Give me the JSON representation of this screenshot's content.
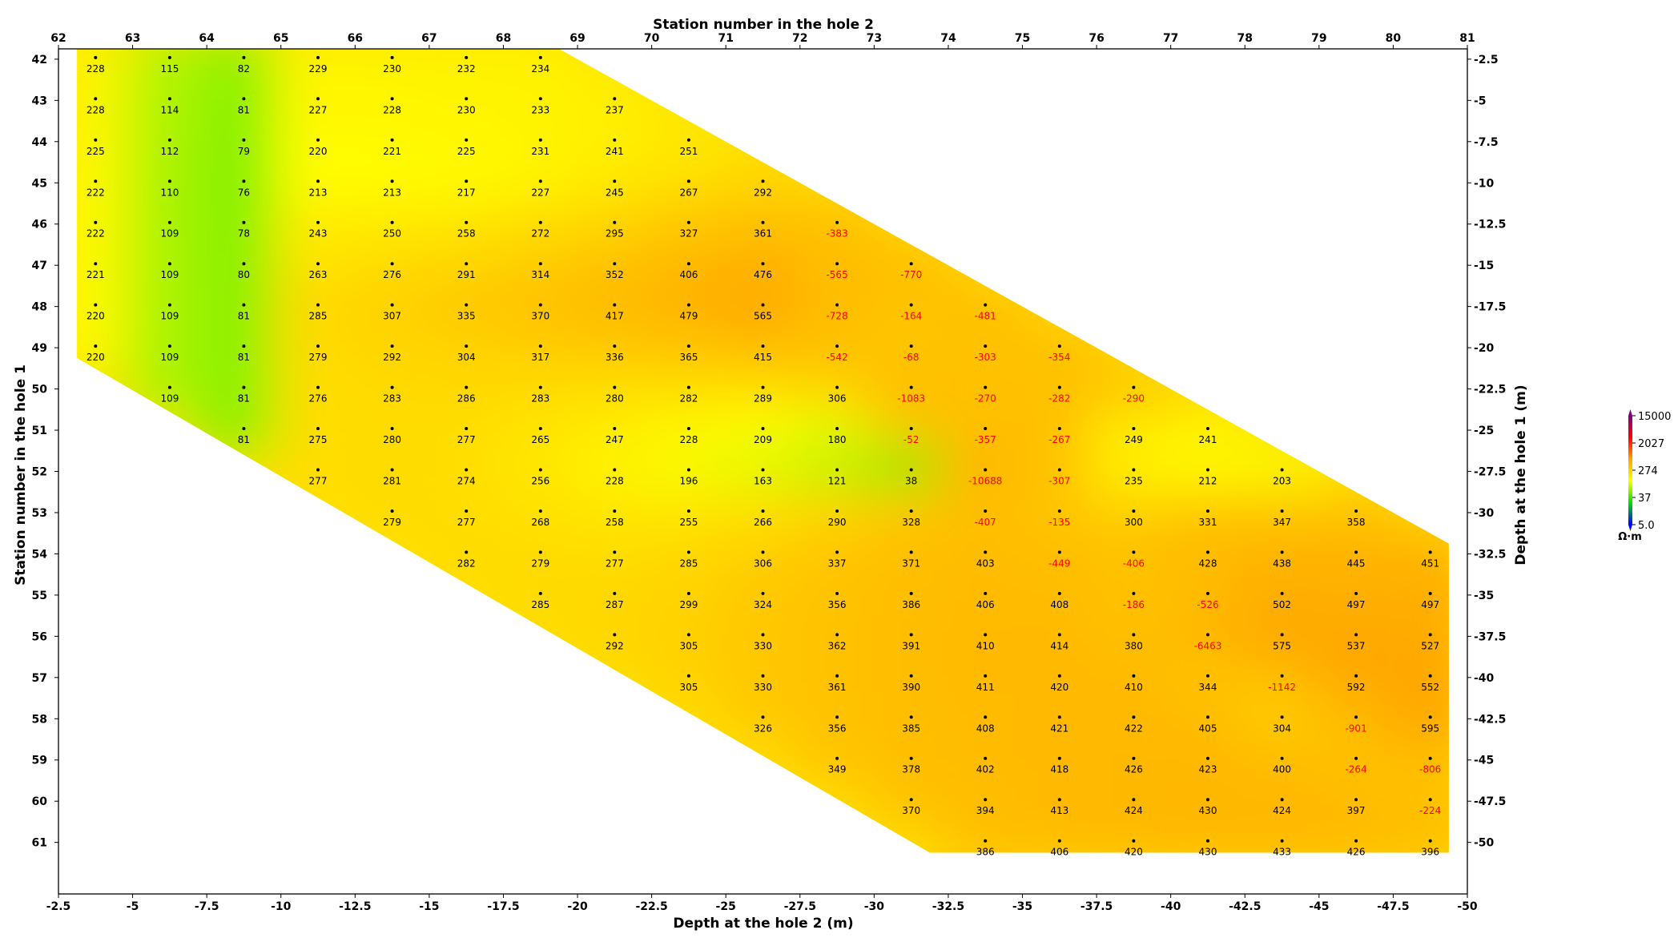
{
  "chart_data": {
    "type": "heatmap",
    "x_label": "Depth at the hole 2 (m)",
    "x2_label": "Station number in the hole 2",
    "y_label": "Station number in the hole 1",
    "y2_label": "Depth at the hole 1 (m)",
    "x_ticks": [
      "-2.5",
      "-5",
      "-7.5",
      "-10",
      "-12.5",
      "-15",
      "-17.5",
      "-20",
      "-22.5",
      "-25",
      "-27.5",
      "-30",
      "-32.5",
      "-35",
      "-37.5",
      "-40",
      "-42.5",
      "-45",
      "-47.5",
      "-50"
    ],
    "x2_ticks": [
      "62",
      "63",
      "64",
      "65",
      "66",
      "67",
      "68",
      "69",
      "70",
      "71",
      "72",
      "73",
      "74",
      "75",
      "76",
      "77",
      "78",
      "79",
      "80",
      "81"
    ],
    "y_ticks": [
      "42",
      "43",
      "44",
      "45",
      "46",
      "47",
      "48",
      "49",
      "50",
      "51",
      "52",
      "53",
      "54",
      "55",
      "56",
      "57",
      "58",
      "59",
      "60",
      "61"
    ],
    "y2_ticks": [
      "-2.5",
      "-5",
      "-7.5",
      "-10",
      "-12.5",
      "-15",
      "-17.5",
      "-20",
      "-22.5",
      "-25",
      "-27.5",
      "-30",
      "-32.5",
      "-35",
      "-37.5",
      "-40",
      "-42.5",
      "-45",
      "-47.5",
      "-50"
    ],
    "colorbar": {
      "unit": "Ω·m",
      "ticks": [
        "15000",
        "2027",
        "274",
        "37",
        "5.0"
      ],
      "colors": [
        "#0000ff",
        "#00e000",
        "#ffff00",
        "#ffa500",
        "#ff0000",
        "#800080"
      ]
    },
    "negative_color": "#ff0000",
    "positive_color": "#000000",
    "rows": [
      {
        "hole1_station": 42,
        "first_hole2_station": 62,
        "values": [
          228,
          115,
          82,
          229,
          230,
          232,
          234
        ]
      },
      {
        "hole1_station": 43,
        "first_hole2_station": 62,
        "values": [
          228,
          114,
          81,
          227,
          228,
          230,
          233,
          237
        ]
      },
      {
        "hole1_station": 44,
        "first_hole2_station": 62,
        "values": [
          225,
          112,
          79,
          220,
          221,
          225,
          231,
          241,
          251
        ]
      },
      {
        "hole1_station": 45,
        "first_hole2_station": 62,
        "values": [
          222,
          110,
          76,
          213,
          213,
          217,
          227,
          245,
          267,
          292
        ]
      },
      {
        "hole1_station": 46,
        "first_hole2_station": 62,
        "values": [
          222,
          109,
          78,
          243,
          250,
          258,
          272,
          295,
          327,
          361,
          -383
        ]
      },
      {
        "hole1_station": 47,
        "first_hole2_station": 62,
        "values": [
          221,
          109,
          80,
          263,
          276,
          291,
          314,
          352,
          406,
          476,
          -565,
          -770
        ]
      },
      {
        "hole1_station": 48,
        "first_hole2_station": 62,
        "values": [
          220,
          109,
          81,
          285,
          307,
          335,
          370,
          417,
          479,
          565,
          -728,
          -164,
          -481
        ]
      },
      {
        "hole1_station": 49,
        "first_hole2_station": 62,
        "values": [
          220,
          109,
          81,
          279,
          292,
          304,
          317,
          336,
          365,
          415,
          -542,
          -68,
          -303,
          -354
        ]
      },
      {
        "hole1_station": 50,
        "first_hole2_station": 63,
        "values": [
          109,
          81,
          276,
          283,
          286,
          283,
          280,
          282,
          289,
          306,
          -1083,
          -270,
          -282,
          -290
        ]
      },
      {
        "hole1_station": 51,
        "first_hole2_station": 64,
        "values": [
          81,
          275,
          280,
          277,
          265,
          247,
          228,
          209,
          180,
          -52,
          -357,
          -267,
          249,
          241
        ]
      },
      {
        "hole1_station": 52,
        "first_hole2_station": 65,
        "values": [
          277,
          281,
          274,
          256,
          228,
          196,
          163,
          121,
          38,
          -10688,
          -307,
          235,
          212,
          203
        ]
      },
      {
        "hole1_station": 53,
        "first_hole2_station": 66,
        "values": [
          279,
          277,
          268,
          258,
          255,
          266,
          290,
          328,
          -407,
          -135,
          300,
          331,
          347,
          358
        ]
      },
      {
        "hole1_station": 54,
        "first_hole2_station": 67,
        "values": [
          282,
          279,
          277,
          285,
          306,
          337,
          371,
          403,
          -449,
          -406,
          428,
          438,
          445,
          451
        ]
      },
      {
        "hole1_station": 55,
        "first_hole2_station": 68,
        "values": [
          285,
          287,
          299,
          324,
          356,
          386,
          406,
          408,
          -186,
          -526,
          502,
          497,
          497
        ]
      },
      {
        "hole1_station": 56,
        "first_hole2_station": 69,
        "values": [
          292,
          305,
          330,
          362,
          391,
          410,
          414,
          380,
          -6463,
          575,
          537,
          527
        ]
      },
      {
        "hole1_station": 57,
        "first_hole2_station": 70,
        "values": [
          305,
          330,
          361,
          390,
          411,
          420,
          410,
          344,
          -1142,
          592,
          552
        ]
      },
      {
        "hole1_station": 58,
        "first_hole2_station": 71,
        "values": [
          326,
          356,
          385,
          408,
          421,
          422,
          405,
          304,
          -901,
          595
        ]
      },
      {
        "hole1_station": 59,
        "first_hole2_station": 72,
        "values": [
          349,
          378,
          402,
          418,
          426,
          423,
          400,
          -264,
          -806
        ]
      },
      {
        "hole1_station": 60,
        "first_hole2_station": 73,
        "values": [
          370,
          394,
          413,
          424,
          430,
          424,
          397,
          -224
        ]
      },
      {
        "hole1_station": 61,
        "first_hole2_station": 74,
        "values": [
          386,
          406,
          420,
          430,
          433,
          426,
          396
        ]
      }
    ]
  }
}
